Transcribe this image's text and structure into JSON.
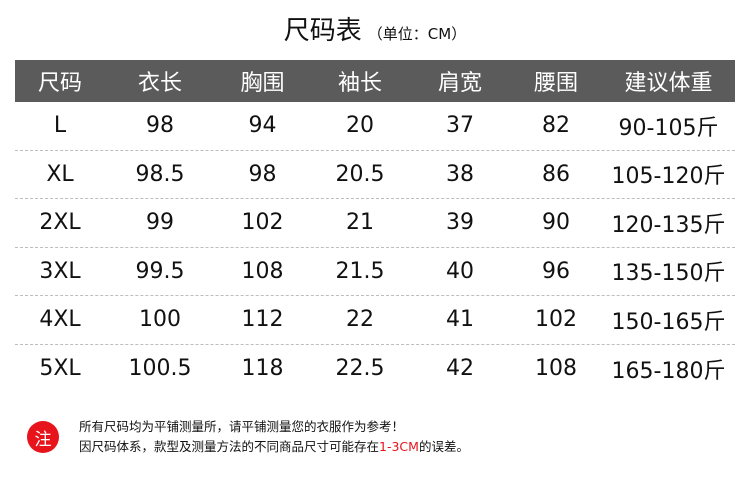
{
  "title": {
    "main": "尺码表",
    "unit": "（单位：CM）"
  },
  "table": {
    "headers": [
      "尺码",
      "衣长",
      "胸围",
      "袖长",
      "肩宽",
      "腰围",
      "建议体重"
    ],
    "rows": [
      [
        "L",
        "98",
        "94",
        "20",
        "37",
        "82",
        "90-105斤"
      ],
      [
        "XL",
        "98.5",
        "98",
        "20.5",
        "38",
        "86",
        "105-120斤"
      ],
      [
        "2XL",
        "99",
        "102",
        "21",
        "39",
        "90",
        "120-135斤"
      ],
      [
        "3XL",
        "99.5",
        "108",
        "21.5",
        "40",
        "96",
        "135-150斤"
      ],
      [
        "4XL",
        "100",
        "112",
        "22",
        "41",
        "102",
        "150-165斤"
      ],
      [
        "5XL",
        "100.5",
        "118",
        "22.5",
        "42",
        "108",
        "165-180斤"
      ]
    ]
  },
  "note": {
    "badge": "注",
    "line1": "所有尺码均为平铺测量所，请平铺测量您的衣服作为参考！",
    "line2_before": "因尺码体系，款型及测量方法的不同商品尺寸可能存在",
    "line2_highlight": "1-3CM",
    "line2_after": "的误差。"
  },
  "colors": {
    "header_bg": "#5b5b5b",
    "accent": "#e8141b"
  }
}
